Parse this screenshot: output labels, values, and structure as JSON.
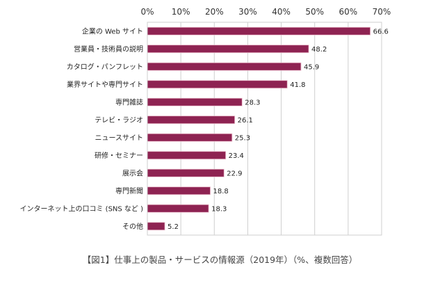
{
  "chart_data": {
    "type": "bar",
    "orientation": "horizontal",
    "categories": [
      "企業の Web サイト",
      "営業員・技術員の説明",
      "カタログ・パンフレット",
      "業界サイトや専門サイト",
      "専門雑誌",
      "テレビ・ラジオ",
      "ニュースサイト",
      "研修・セミナー",
      "展示会",
      "専門新聞",
      "インターネット上の口コミ (SNS など )",
      "その他"
    ],
    "values": [
      66.6,
      48.2,
      45.9,
      41.8,
      28.3,
      26.1,
      25.3,
      23.4,
      22.9,
      18.8,
      18.3,
      5.2
    ],
    "value_labels": [
      "66.6",
      "48.2",
      "45.9",
      "41.8",
      "28.3",
      "26.1",
      "25.3",
      "23.4",
      "22.9",
      "18.8",
      "18.3",
      "5.2"
    ],
    "xlim": [
      0,
      70
    ],
    "xticks": [
      0,
      10,
      20,
      30,
      40,
      50,
      60,
      70
    ],
    "xtick_labels": [
      "0%",
      "10%",
      "20%",
      "30%",
      "40%",
      "50%",
      "60%",
      "70%"
    ],
    "axis_position": "top",
    "grid": true,
    "legend": "none",
    "bar_color": "#8e2352",
    "bar_edge_color": "#e9b8c8",
    "grid_color": "#cfcfcf",
    "title": "【図1】仕事上の製品・サービスの情報源（2019年）（%、複数回答）"
  }
}
